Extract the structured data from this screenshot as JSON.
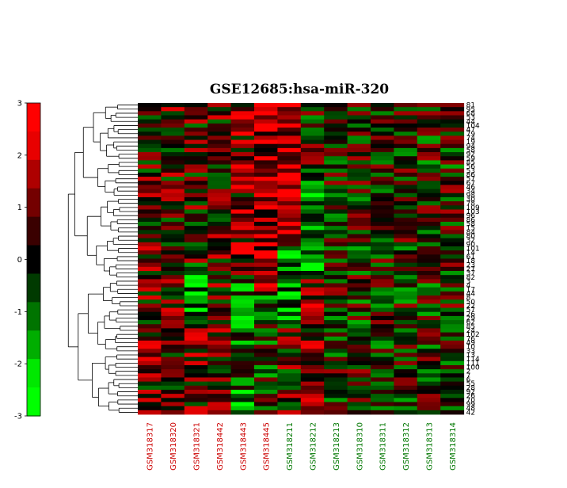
{
  "chart_data": {
    "type": "heatmap",
    "title": "GSE12685:hsa-miR-320",
    "colorbar": {
      "range": [
        -3,
        3
      ],
      "ticks": [
        "3",
        "2",
        "1",
        "0",
        "-1",
        "-2",
        "-3"
      ],
      "colors": [
        "#ff0000",
        "#000000",
        "#00ff00"
      ]
    },
    "columns": [
      {
        "label": "GSM318317",
        "color": "#cc0000"
      },
      {
        "label": "GSM318320",
        "color": "#cc0000"
      },
      {
        "label": "GSM318321",
        "color": "#cc0000"
      },
      {
        "label": "GSM318442",
        "color": "#cc0000"
      },
      {
        "label": "GSM318443",
        "color": "#cc0000"
      },
      {
        "label": "GSM318445",
        "color": "#cc0000"
      },
      {
        "label": "GSM318211",
        "color": "#007700"
      },
      {
        "label": "GSM318212",
        "color": "#007700"
      },
      {
        "label": "GSM318213",
        "color": "#007700"
      },
      {
        "label": "GSM318310",
        "color": "#007700"
      },
      {
        "label": "GSM318311",
        "color": "#007700"
      },
      {
        "label": "GSM318312",
        "color": "#007700"
      },
      {
        "label": "GSM318313",
        "color": "#007700"
      },
      {
        "label": "GSM318314",
        "color": "#007700"
      }
    ],
    "row_labels": [
      "81",
      "95",
      "68",
      "53",
      "44",
      "104",
      "47",
      "79",
      "74",
      "19",
      "94",
      "58",
      "92",
      "59",
      "85",
      "56",
      "53",
      "86",
      "57",
      "67",
      "46",
      "34",
      "98",
      "30",
      "78",
      "109",
      "103",
      "96",
      "86",
      "58",
      "15",
      "84",
      "80",
      "32",
      "90",
      "101",
      "14",
      "61",
      "18",
      "23",
      "27",
      "37",
      "82",
      "3",
      "4",
      "17",
      "44",
      "8",
      "50",
      "22",
      "57",
      "26",
      "29",
      "62",
      "85",
      "24",
      "102",
      "76",
      "49",
      "10",
      "33",
      "13",
      "114",
      "111",
      "100",
      "2",
      "7",
      "6",
      "55",
      "28",
      "92",
      "26",
      "70",
      "99",
      "48",
      "42"
    ],
    "legend": "none"
  }
}
